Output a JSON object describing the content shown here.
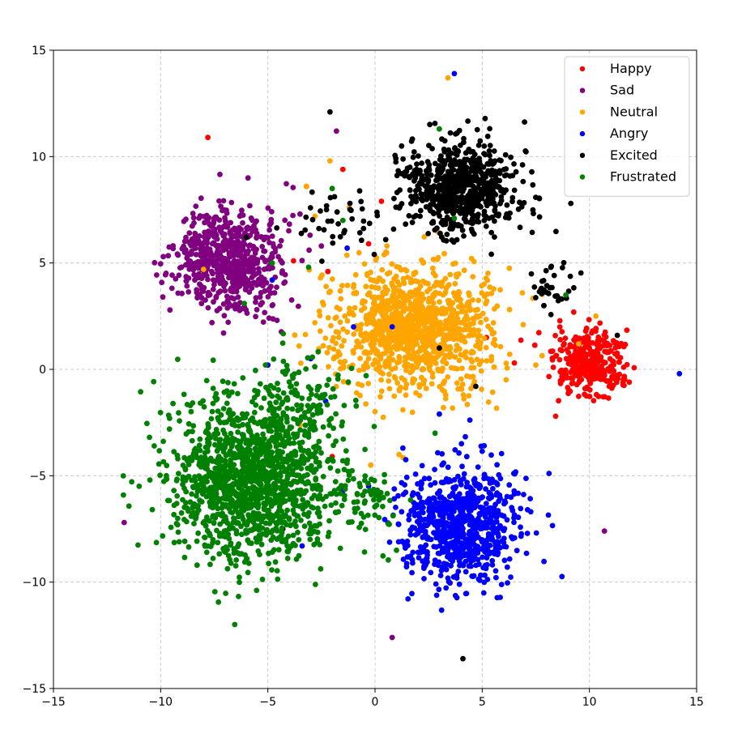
{
  "chart_data": {
    "type": "scatter",
    "title": "",
    "xlabel": "",
    "ylabel": "",
    "xlim": [
      -15,
      15
    ],
    "ylim": [
      -15,
      15
    ],
    "xticks": [
      -15,
      -10,
      -5,
      0,
      5,
      10,
      15
    ],
    "yticks": [
      -15,
      -10,
      -5,
      0,
      5,
      10,
      15
    ],
    "x_tick_labels": [
      "−15",
      "−10",
      "−5",
      "0",
      "5",
      "10",
      "15"
    ],
    "y_tick_labels": [
      "−15",
      "−10",
      "−5",
      "0",
      "5",
      "10",
      "15"
    ],
    "grid": true,
    "legend_position": "top-right",
    "series": [
      {
        "name": "Happy",
        "color": "#ff0000",
        "cluster": {
          "center": [
            10,
            0.2
          ],
          "sd": [
            0.8,
            0.8
          ],
          "count": 320
        },
        "outliers": [
          [
            -7.8,
            10.9
          ],
          [
            0.3,
            7.9
          ],
          [
            -1.5,
            9.4
          ],
          [
            -3.8,
            5.1
          ],
          [
            -2.2,
            4.6
          ],
          [
            -0.3,
            5.9
          ],
          [
            -2.0,
            -4.1
          ],
          [
            5.2,
            1.5
          ],
          [
            6.5,
            0.3
          ],
          [
            11.6,
            0.1
          ]
        ]
      },
      {
        "name": "Sad",
        "color": "#800080",
        "cluster": {
          "center": [
            -6.8,
            5.2
          ],
          "sd": [
            1.2,
            1.2
          ],
          "count": 650
        },
        "outliers": [
          [
            -11.7,
            -7.2
          ],
          [
            10.7,
            -7.6
          ],
          [
            0.8,
            -12.6
          ],
          [
            -1.8,
            11.2
          ],
          [
            -3.2,
            8.6
          ],
          [
            -3.5,
            7.3
          ],
          [
            -4.2,
            4.1
          ],
          [
            -4.8,
            3.0
          ],
          [
            -9.9,
            3.4
          ],
          [
            -2.5,
            5.8
          ]
        ]
      },
      {
        "name": "Neutral",
        "color": "#ffa500",
        "cluster": {
          "center": [
            1.8,
            2.0
          ],
          "sd": [
            1.8,
            1.5
          ],
          "count": 1100
        },
        "outliers": [
          [
            3.4,
            13.7
          ],
          [
            -2.1,
            9.8
          ],
          [
            -3.2,
            8.6
          ],
          [
            -8.0,
            4.7
          ],
          [
            -2.8,
            7.2
          ],
          [
            -1.2,
            7.6
          ],
          [
            -3.5,
            -2.6
          ],
          [
            7.5,
            0.2
          ],
          [
            9.5,
            1.2
          ],
          [
            10.3,
            2.5
          ],
          [
            -0.2,
            -4.5
          ]
        ]
      },
      {
        "name": "Angry",
        "color": "#0000ff",
        "cluster": {
          "center": [
            4.0,
            -7.3
          ],
          "sd": [
            1.4,
            1.3
          ],
          "count": 800
        },
        "outliers": [
          [
            3.7,
            13.9
          ],
          [
            14.2,
            -0.2
          ],
          [
            -1.3,
            5.7
          ],
          [
            0.8,
            2.0
          ],
          [
            -1.0,
            2.0
          ],
          [
            -3.0,
            0.5
          ],
          [
            -4.8,
            4.2
          ],
          [
            -5.0,
            0.2
          ],
          [
            -2.3,
            -1.5
          ],
          [
            1.3,
            -3.7
          ],
          [
            3.0,
            -2.1
          ],
          [
            -1.5,
            -5.7
          ],
          [
            -3.4,
            -8.3
          ]
        ]
      },
      {
        "name": "Excited",
        "color": "#000000",
        "cluster": {
          "center": [
            4.0,
            8.5
          ],
          "sd": [
            1.3,
            1.1
          ],
          "count": 650
        },
        "sub_cluster": {
          "center": [
            8.2,
            3.8
          ],
          "sd": [
            0.5,
            0.5
          ],
          "count": 35
        },
        "extra_cluster": {
          "center": [
            -1.5,
            7.0
          ],
          "sd": [
            1.0,
            0.8
          ],
          "count": 40
        },
        "outliers": [
          [
            -2.1,
            12.1
          ],
          [
            4.1,
            -13.6
          ],
          [
            -4.3,
            -7.5
          ],
          [
            3.0,
            1.0
          ],
          [
            -6.0,
            6.2
          ],
          [
            11.3,
            1.6
          ],
          [
            4.7,
            -0.8
          ],
          [
            0.5,
            6.1
          ]
        ]
      },
      {
        "name": "Frustrated",
        "color": "#008000",
        "cluster": {
          "center": [
            -5.8,
            -5.2
          ],
          "sd": [
            1.9,
            1.9
          ],
          "count": 1350
        },
        "sub_cluster": {
          "center": [
            -3.5,
            -1.5
          ],
          "sd": [
            1.2,
            1.0
          ],
          "count": 120
        },
        "extra_cluster": {
          "center": [
            -0.5,
            -6.0
          ],
          "sd": [
            0.8,
            0.8
          ],
          "count": 70
        },
        "outliers": [
          [
            3.0,
            11.3
          ],
          [
            -2.0,
            8.5
          ],
          [
            -1.5,
            7.0
          ],
          [
            -3.1,
            4.8
          ],
          [
            -4.8,
            5.0
          ],
          [
            8.9,
            3.5
          ],
          [
            3.7,
            7.1
          ],
          [
            -8.3,
            -9.2
          ],
          [
            -10.5,
            -5.2
          ],
          [
            1.0,
            -8.5
          ],
          [
            2.8,
            -3.0
          ],
          [
            -6.1,
            3.1
          ]
        ]
      }
    ]
  }
}
